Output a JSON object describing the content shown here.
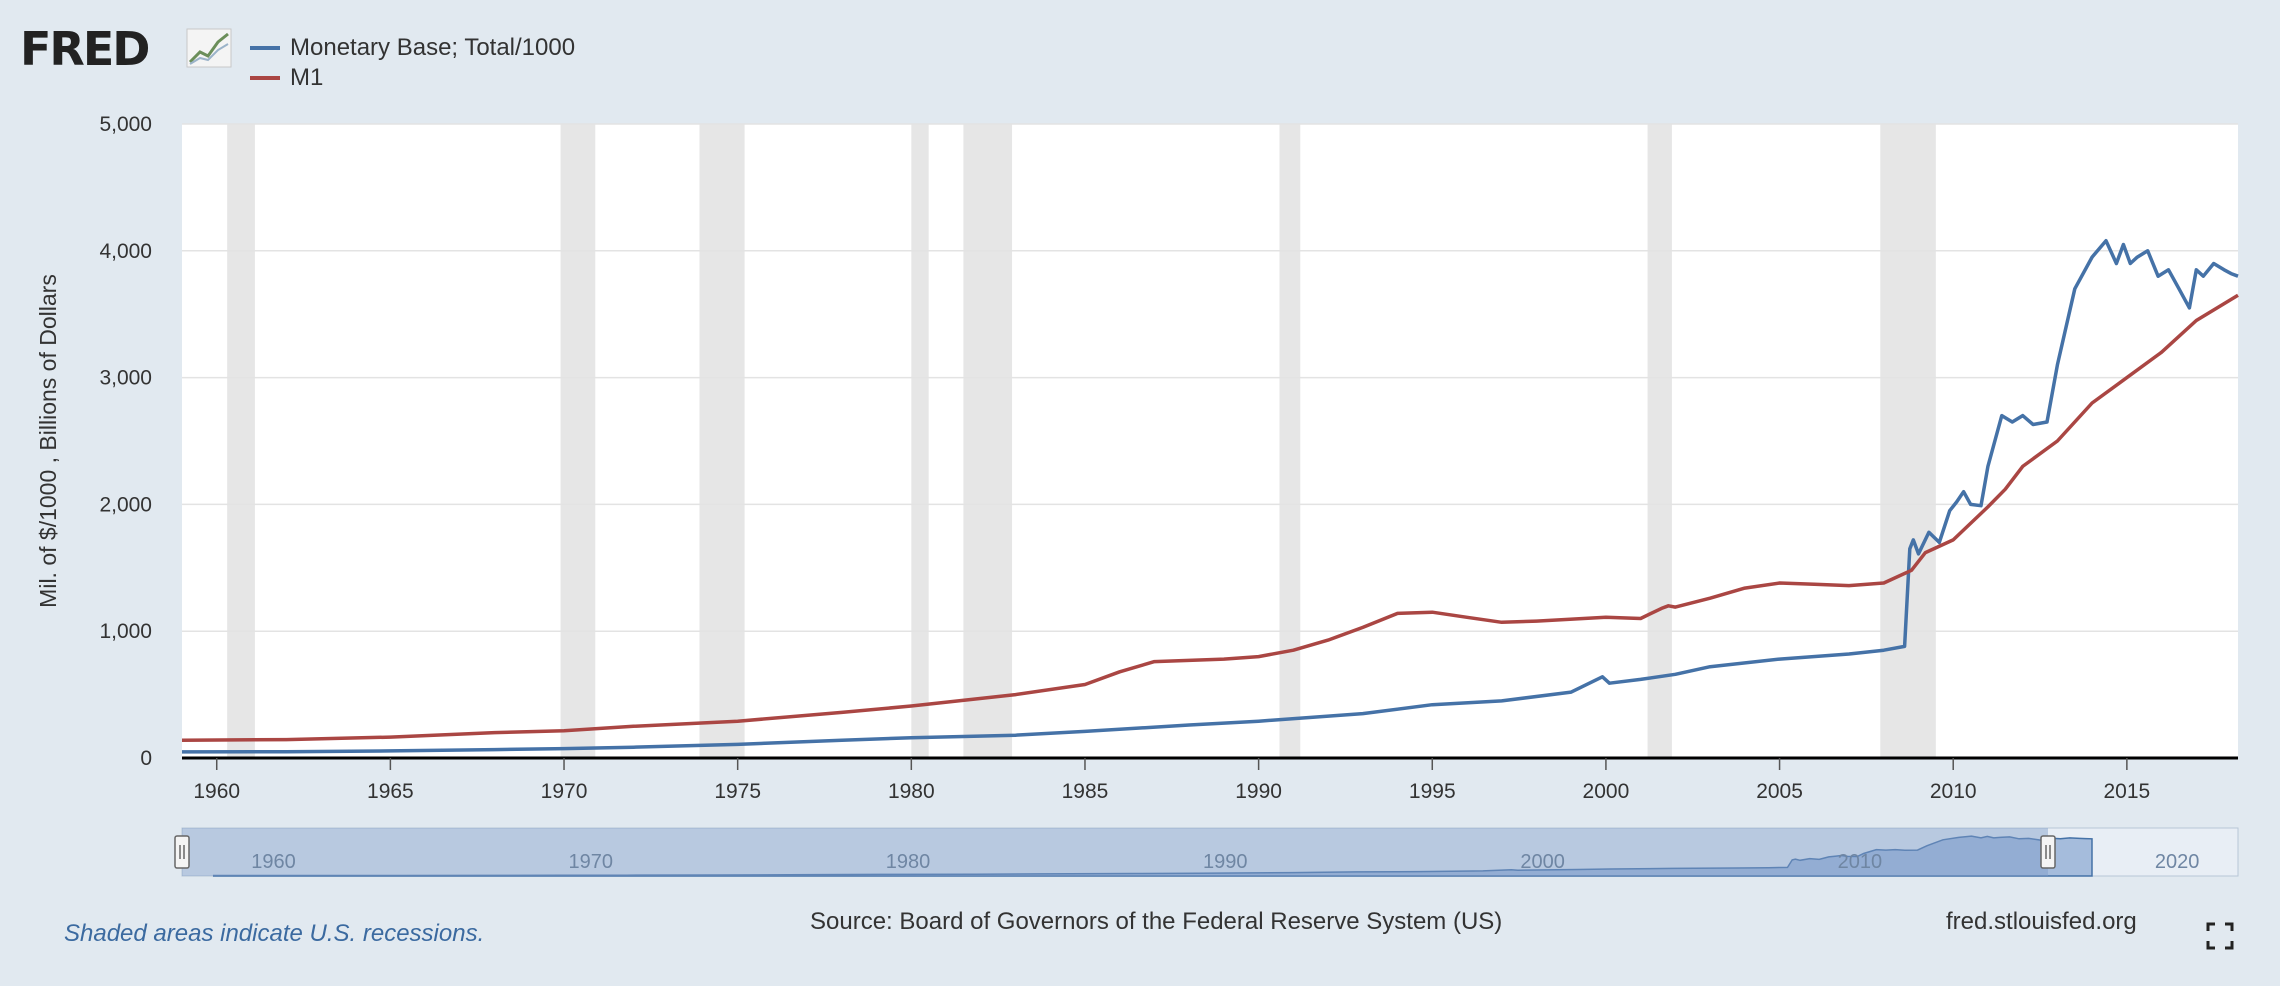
{
  "brand": {
    "logo_text": "FRED"
  },
  "legend": [
    {
      "name": "Monetary Base; Total/1000",
      "color": "#4572a7"
    },
    {
      "name": "M1",
      "color": "#aa4643"
    }
  ],
  "footer": {
    "recession_note": "Shaded areas indicate U.S. recessions.",
    "source": "Source: Board of Governors of the Federal Reserve System (US)",
    "site": "fred.stlouisfed.org"
  },
  "chart_data": {
    "type": "line",
    "ylabel": "Mil. of $/1000 , Billions of Dollars",
    "xlabel": "",
    "ylim": [
      0,
      5000
    ],
    "xlim": [
      1959.0,
      2018.2
    ],
    "y_ticks": [
      "0",
      "1,000",
      "2,000",
      "3,000",
      "4,000",
      "5,000"
    ],
    "x_ticks": [
      "1960",
      "1965",
      "1970",
      "1975",
      "1980",
      "1985",
      "1990",
      "1995",
      "2000",
      "2005",
      "2010",
      "2015"
    ],
    "navigator_ticks": [
      "1960",
      "1970",
      "1980",
      "1990",
      "2000",
      "2010",
      "2020"
    ],
    "grid": true,
    "legend_position": "top-left",
    "recessions": [
      [
        1960.3,
        1961.1
      ],
      [
        1969.9,
        1970.9
      ],
      [
        1973.9,
        1975.2
      ],
      [
        1980.0,
        1980.5
      ],
      [
        1981.5,
        1982.9
      ],
      [
        1990.6,
        1991.2
      ],
      [
        2001.2,
        2001.9
      ],
      [
        2007.9,
        2009.5
      ]
    ],
    "series": [
      {
        "name": "Monetary Base; Total/1000",
        "color": "#4572a7",
        "x": [
          1959.0,
          1962,
          1965,
          1968,
          1970,
          1972,
          1975,
          1978,
          1980,
          1983,
          1985,
          1988,
          1990,
          1993,
          1995,
          1997,
          1999,
          1999.9,
          2000.1,
          2001,
          2002,
          2003,
          2005,
          2007,
          2008.0,
          2008.6,
          2008.75,
          2008.85,
          2009.0,
          2009.3,
          2009.6,
          2009.9,
          2010.1,
          2010.3,
          2010.5,
          2010.8,
          2011.0,
          2011.4,
          2011.7,
          2012.0,
          2012.3,
          2012.7,
          2013.0,
          2013.5,
          2014.0,
          2014.4,
          2014.7,
          2014.9,
          2015.1,
          2015.3,
          2015.6,
          2015.9,
          2016.2,
          2016.5,
          2016.8,
          2017.0,
          2017.2,
          2017.5,
          2017.8,
          2018.0,
          2018.2
        ],
        "values": [
          48,
          50,
          56,
          66,
          74,
          85,
          107,
          140,
          160,
          180,
          210,
          260,
          290,
          350,
          420,
          450,
          520,
          640,
          590,
          620,
          660,
          720,
          780,
          820,
          850,
          880,
          1650,
          1720,
          1610,
          1780,
          1700,
          1950,
          2020,
          2100,
          2000,
          1990,
          2300,
          2700,
          2650,
          2700,
          2630,
          2650,
          3100,
          3700,
          3950,
          4080,
          3900,
          4050,
          3900,
          3950,
          4000,
          3800,
          3850,
          3700,
          3550,
          3850,
          3800,
          3900,
          3850,
          3820,
          3800
        ]
      },
      {
        "name": "M1",
        "color": "#aa4643",
        "x": [
          1959.0,
          1962,
          1965,
          1968,
          1970,
          1972,
          1975,
          1978,
          1980,
          1983,
          1985,
          1986,
          1987,
          1989,
          1990,
          1991,
          1992,
          1993,
          1994,
          1995,
          1996,
          1997,
          1998,
          2000,
          2001,
          2001.6,
          2001.8,
          2002,
          2003,
          2004,
          2005,
          2006,
          2007,
          2008,
          2008.8,
          2009.2,
          2010,
          2011,
          2011.5,
          2012,
          2013,
          2014,
          2015,
          2016,
          2017,
          2018.2
        ],
        "values": [
          140,
          145,
          165,
          200,
          215,
          250,
          290,
          360,
          410,
          500,
          580,
          680,
          760,
          780,
          800,
          850,
          930,
          1030,
          1140,
          1150,
          1110,
          1070,
          1080,
          1110,
          1100,
          1180,
          1200,
          1190,
          1260,
          1340,
          1380,
          1370,
          1360,
          1380,
          1480,
          1620,
          1720,
          1980,
          2120,
          2300,
          2500,
          2800,
          3000,
          3200,
          3450,
          3650
        ]
      }
    ]
  }
}
